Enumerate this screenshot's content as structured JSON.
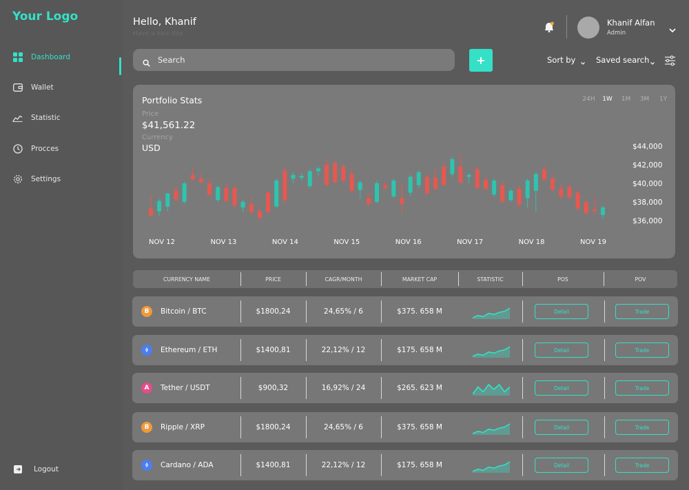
{
  "brand": {
    "logo_text": "Your Logo",
    "accent": "#35e0c7"
  },
  "sidebar": {
    "items": [
      {
        "label": "Dashboard",
        "icon": "grid-icon",
        "active": true
      },
      {
        "label": "Wallet",
        "icon": "wallet-icon",
        "active": false
      },
      {
        "label": "Statistic",
        "icon": "chart-line-icon",
        "active": false
      },
      {
        "label": "Procces",
        "icon": "clock-icon",
        "active": false
      },
      {
        "label": "Settings",
        "icon": "gear-icon",
        "active": false
      }
    ],
    "logout_label": "Logout"
  },
  "header": {
    "greeting": "Hello, Khanif",
    "subtitle": "Have a nice day",
    "user": {
      "name": "Khanif Alfan",
      "role": "Admin"
    }
  },
  "toolbar": {
    "search_placeholder": "Search",
    "add_label": "+",
    "sort_label": "Sort by",
    "saved_search_label": "Saved search"
  },
  "portfolio": {
    "title": "Portfolio Stats",
    "price_label": "Price",
    "price_value": "$41,561.22",
    "currency_label": "Currency",
    "currency_value": "USD",
    "ranges": [
      "24H",
      "1W",
      "1M",
      "3M",
      "1Y"
    ],
    "active_range": "1W"
  },
  "chart_data": {
    "type": "candlestick",
    "x_labels": [
      "NOV 12",
      "NOV 13",
      "NOV 14",
      "NOV 15",
      "NOV 16",
      "NOV 17",
      "NOV 18",
      "NOV 19"
    ],
    "y_ticks": [
      "$44,000",
      "$42,000",
      "$40,000",
      "$38,000",
      "$36,000"
    ],
    "y_values": [
      44000,
      42000,
      40000,
      38000,
      36000
    ],
    "ylim": [
      36000,
      44000
    ],
    "colors": {
      "up": "#2ec4ae",
      "down": "#e8584f"
    },
    "candles": [
      {
        "o": 37300,
        "h": 38800,
        "l": 36400,
        "c": 36500
      },
      {
        "o": 37000,
        "h": 38300,
        "l": 36500,
        "c": 38100
      },
      {
        "o": 37500,
        "h": 39000,
        "l": 37000,
        "c": 38900
      },
      {
        "o": 39200,
        "h": 39700,
        "l": 38000,
        "c": 38300
      },
      {
        "o": 38000,
        "h": 40200,
        "l": 37800,
        "c": 40000
      },
      {
        "o": 40900,
        "h": 41800,
        "l": 40300,
        "c": 40400
      },
      {
        "o": 40500,
        "h": 41100,
        "l": 39900,
        "c": 40100
      },
      {
        "o": 40000,
        "h": 40500,
        "l": 38600,
        "c": 38800
      },
      {
        "o": 38200,
        "h": 39700,
        "l": 38000,
        "c": 39600
      },
      {
        "o": 39500,
        "h": 40000,
        "l": 37900,
        "c": 38100
      },
      {
        "o": 39500,
        "h": 39800,
        "l": 37400,
        "c": 37600
      },
      {
        "o": 37400,
        "h": 38200,
        "l": 36900,
        "c": 38000
      },
      {
        "o": 37800,
        "h": 38600,
        "l": 36700,
        "c": 36900
      },
      {
        "o": 37000,
        "h": 37500,
        "l": 36000,
        "c": 36300
      },
      {
        "o": 39000,
        "h": 39200,
        "l": 36800,
        "c": 36900
      },
      {
        "o": 37500,
        "h": 40500,
        "l": 37400,
        "c": 40300
      },
      {
        "o": 41300,
        "h": 41900,
        "l": 37800,
        "c": 38200
      },
      {
        "o": 40500,
        "h": 41200,
        "l": 40000,
        "c": 40900
      },
      {
        "o": 40600,
        "h": 41100,
        "l": 40300,
        "c": 40800
      },
      {
        "o": 39700,
        "h": 41500,
        "l": 39500,
        "c": 41300
      },
      {
        "o": 41300,
        "h": 41800,
        "l": 40800,
        "c": 41600
      },
      {
        "o": 42000,
        "h": 42700,
        "l": 39600,
        "c": 39800
      },
      {
        "o": 42200,
        "h": 42400,
        "l": 40000,
        "c": 40100
      },
      {
        "o": 41800,
        "h": 42100,
        "l": 39900,
        "c": 40300
      },
      {
        "o": 41000,
        "h": 41600,
        "l": 39000,
        "c": 39200
      },
      {
        "o": 39300,
        "h": 40300,
        "l": 38300,
        "c": 40100
      },
      {
        "o": 38400,
        "h": 39000,
        "l": 37500,
        "c": 37800
      },
      {
        "o": 38000,
        "h": 40300,
        "l": 37900,
        "c": 40000
      },
      {
        "o": 39800,
        "h": 40100,
        "l": 39300,
        "c": 39500
      },
      {
        "o": 38600,
        "h": 40500,
        "l": 38400,
        "c": 40300
      },
      {
        "o": 38400,
        "h": 40000,
        "l": 36800,
        "c": 37800
      },
      {
        "o": 39000,
        "h": 40900,
        "l": 38600,
        "c": 40700
      },
      {
        "o": 39800,
        "h": 41400,
        "l": 39500,
        "c": 41200
      },
      {
        "o": 40700,
        "h": 41000,
        "l": 38700,
        "c": 38900
      },
      {
        "o": 40600,
        "h": 41600,
        "l": 39300,
        "c": 39400
      },
      {
        "o": 41800,
        "h": 42300,
        "l": 39700,
        "c": 39800
      },
      {
        "o": 41000,
        "h": 42800,
        "l": 40700,
        "c": 42600
      },
      {
        "o": 41800,
        "h": 43100,
        "l": 39900,
        "c": 40100
      },
      {
        "o": 40700,
        "h": 41100,
        "l": 40000,
        "c": 40900
      },
      {
        "o": 41500,
        "h": 41900,
        "l": 39300,
        "c": 39500
      },
      {
        "o": 40400,
        "h": 40700,
        "l": 39300,
        "c": 39400
      },
      {
        "o": 38800,
        "h": 40500,
        "l": 38600,
        "c": 40300
      },
      {
        "o": 39800,
        "h": 40200,
        "l": 37800,
        "c": 38000
      },
      {
        "o": 38200,
        "h": 39400,
        "l": 38000,
        "c": 39200
      },
      {
        "o": 39400,
        "h": 39800,
        "l": 37400,
        "c": 37700
      },
      {
        "o": 38400,
        "h": 40500,
        "l": 37400,
        "c": 40300
      },
      {
        "o": 39200,
        "h": 41200,
        "l": 36900,
        "c": 41000
      },
      {
        "o": 41500,
        "h": 42000,
        "l": 40200,
        "c": 40400
      },
      {
        "o": 40500,
        "h": 41000,
        "l": 39100,
        "c": 39300
      },
      {
        "o": 39400,
        "h": 40000,
        "l": 38300,
        "c": 38600
      },
      {
        "o": 39600,
        "h": 40000,
        "l": 38300,
        "c": 38500
      },
      {
        "o": 39000,
        "h": 39300,
        "l": 37100,
        "c": 37300
      },
      {
        "o": 38000,
        "h": 38200,
        "l": 36600,
        "c": 36800
      },
      {
        "o": 37200,
        "h": 38500,
        "l": 36700,
        "c": 37000
      },
      {
        "o": 36600,
        "h": 37600,
        "l": 36200,
        "c": 37400
      }
    ]
  },
  "table": {
    "headers": [
      "CURRENCY NAME",
      "PRICE",
      "CAGR/MONTH",
      "MARKET CAP",
      "STATISTIC",
      "POS",
      "POV"
    ],
    "rows": [
      {
        "coin_icon": "B",
        "coin_color": "#f09a3a",
        "name": "Bitcoin / BTC",
        "price": "$1800,24",
        "cagr": "24,65% / 6",
        "market_cap": "$375. 658 M",
        "spark": [
          3,
          5,
          4,
          7,
          6,
          8,
          9,
          12
        ],
        "detail": "Detail",
        "trade": "Trade"
      },
      {
        "coin_icon": "⬨",
        "coin_color": "#4c7ef0",
        "name": "Ethereum / ETH",
        "price": "$1400,81",
        "cagr": "22,12% / 12",
        "market_cap": "$175. 658 M",
        "spark": [
          3,
          5,
          4,
          7,
          6,
          8,
          9,
          12
        ],
        "detail": "Detail",
        "trade": "Trade"
      },
      {
        "coin_icon": "A",
        "coin_color": "#e84a8a",
        "name": "Tether / USDT",
        "price": "$900,32",
        "cagr": "16,92% / 24",
        "market_cap": "$265. 623 M",
        "spark": [
          5,
          8,
          6,
          9,
          7,
          9,
          6,
          8
        ],
        "detail": "Detail",
        "trade": "Trade"
      },
      {
        "coin_icon": "B",
        "coin_color": "#f09a3a",
        "name": "Ripple / XRP",
        "price": "$1800,24",
        "cagr": "24,65% / 6",
        "market_cap": "$375. 658 M",
        "spark": [
          3,
          5,
          4,
          7,
          6,
          8,
          9,
          12
        ],
        "detail": "Detail",
        "trade": "Trade"
      },
      {
        "coin_icon": "⬨",
        "coin_color": "#4c7ef0",
        "name": "Cardano / ADA",
        "price": "$1400,81",
        "cagr": "22,12% / 12",
        "market_cap": "$175. 658 M",
        "spark": [
          3,
          5,
          4,
          7,
          6,
          8,
          9,
          12
        ],
        "detail": "Detail",
        "trade": "Trade"
      }
    ]
  }
}
